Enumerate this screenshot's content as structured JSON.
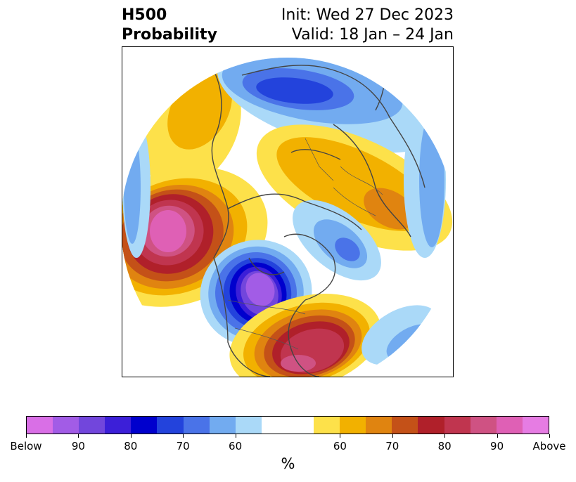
{
  "title": {
    "left_line1": "H500",
    "left_line2": "Probability",
    "right_line1": "Init: Wed 27 Dec 2023",
    "right_line2": "Valid: 18 Jan – 24 Jan"
  },
  "map": {
    "projection": "north polar stereographic",
    "anomalies": [
      {
        "region": "Alaska / Gulf of Alaska",
        "sign": "above",
        "peak_probability": "90+"
      },
      {
        "region": "Western / Central United States",
        "sign": "below",
        "peak_probability": "90+"
      },
      {
        "region": "Southeastern United States",
        "sign": "above",
        "peak_probability": "80+"
      },
      {
        "region": "Northern Scandinavia / Barents",
        "sign": "below",
        "peak_probability": "80"
      },
      {
        "region": "Western Russia / Eastern Europe",
        "sign": "above",
        "peak_probability": "70"
      },
      {
        "region": "Northern Canada / Baffin",
        "sign": "below",
        "peak_probability": "70"
      },
      {
        "region": "Eastern Siberia",
        "sign": "above",
        "peak_probability": "60"
      }
    ]
  },
  "colorbar": {
    "colors": [
      "#d96fe6",
      "#a25ce6",
      "#7246dc",
      "#3c1fd8",
      "#0000cd",
      "#2343dc",
      "#4a73e8",
      "#72abf0",
      "#aad9f8",
      "#ffffff",
      "#ffffff",
      "#fde14a",
      "#f2b100",
      "#e08410",
      "#c45118",
      "#b0202a",
      "#c0354f",
      "#cf5283",
      "#df60b5",
      "#e67ce3"
    ],
    "labels": [
      "Below",
      "90",
      "80",
      "70",
      "60",
      "60",
      "70",
      "80",
      "90",
      "Above"
    ],
    "unit": "%"
  }
}
